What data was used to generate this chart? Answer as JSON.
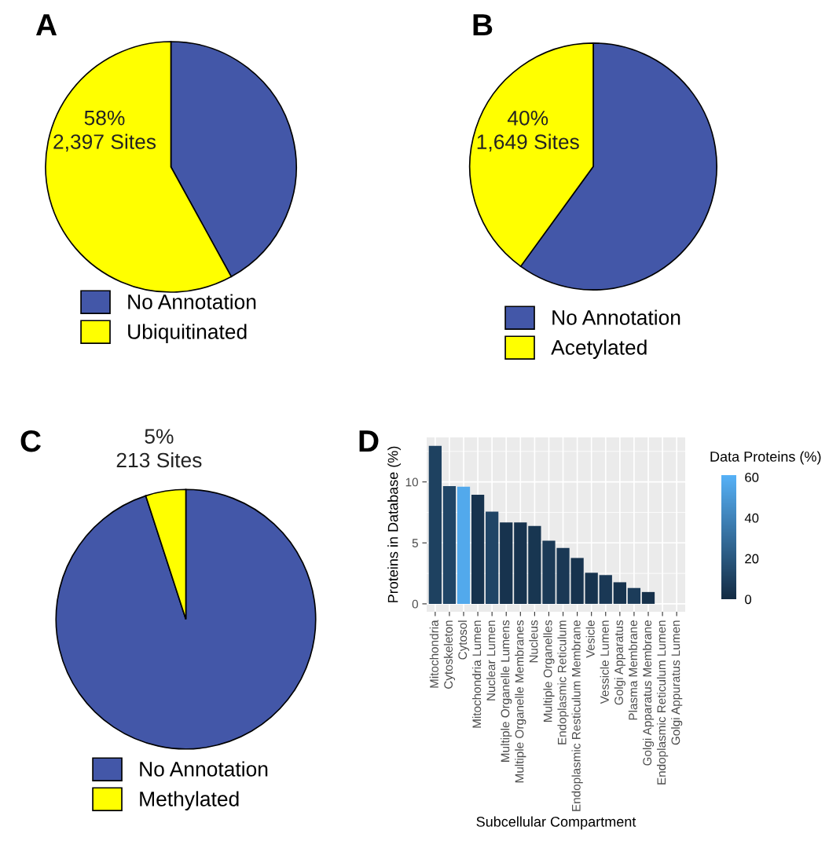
{
  "chart_data": [
    {
      "type": "pie",
      "title": "A",
      "categories": [
        "No Annotation",
        "Ubiquitinated"
      ],
      "values": [
        42,
        58
      ],
      "colors": [
        "#4357a8",
        "#ffff00"
      ],
      "value_labels": [
        null,
        "58%\n2,397 Sites"
      ],
      "legend": "bottom"
    },
    {
      "type": "pie",
      "title": "B",
      "categories": [
        "No Annotation",
        "Acetylated"
      ],
      "values": [
        60,
        40
      ],
      "colors": [
        "#4357a8",
        "#ffff00"
      ],
      "value_labels": [
        null,
        "40%\n1,649 Sites"
      ],
      "legend": "bottom"
    },
    {
      "type": "pie",
      "title": "C",
      "categories": [
        "No Annotation",
        "Methylated"
      ],
      "values": [
        95,
        5
      ],
      "colors": [
        "#4357a8",
        "#ffff00"
      ],
      "value_labels": [
        null,
        "5%\n213 Sites"
      ],
      "legend": "bottom"
    },
    {
      "type": "bar",
      "title": "D",
      "xlabel": "Subcellular Compartment",
      "ylabel": "Proteins in Database (%)",
      "clabel": "Data Proteins (%)",
      "categories": [
        "Mitochondria",
        "Cytoskeleton",
        "Cytosol",
        "Mitochondria Lumen",
        "Nuclear Lumen",
        "Multiple Organelle Lumens",
        "Multiple Organelle Membranes",
        "Nucleus",
        "Multiple Organelles",
        "Endoplasmic Reticulum",
        "Endoplasmic Resticulum Membrane",
        "Vesicle",
        "Vessicle Lumen",
        "Golgi Apparatus",
        "Plasma Membrane",
        "Golgi Apparatus Membrane",
        "Endoplasmic Reticulum Lumen",
        "Golgi Appuratus Lumen"
      ],
      "values": [
        12.95,
        9.65,
        9.6,
        8.95,
        7.57,
        6.67,
        6.67,
        6.38,
        5.18,
        4.59,
        3.76,
        2.55,
        2.36,
        1.77,
        1.3,
        0.97,
        0,
        0
      ],
      "cvalues": [
        10,
        12,
        57,
        4,
        12,
        4,
        4,
        5,
        7,
        6,
        4,
        4,
        6,
        4,
        8,
        3,
        null,
        null
      ],
      "clim": [
        0,
        61
      ],
      "cticks": [
        0,
        20,
        40,
        60
      ],
      "ylim": [
        -0.65,
        13.65
      ],
      "yticks": [
        0,
        5,
        10
      ],
      "grid": true
    }
  ]
}
